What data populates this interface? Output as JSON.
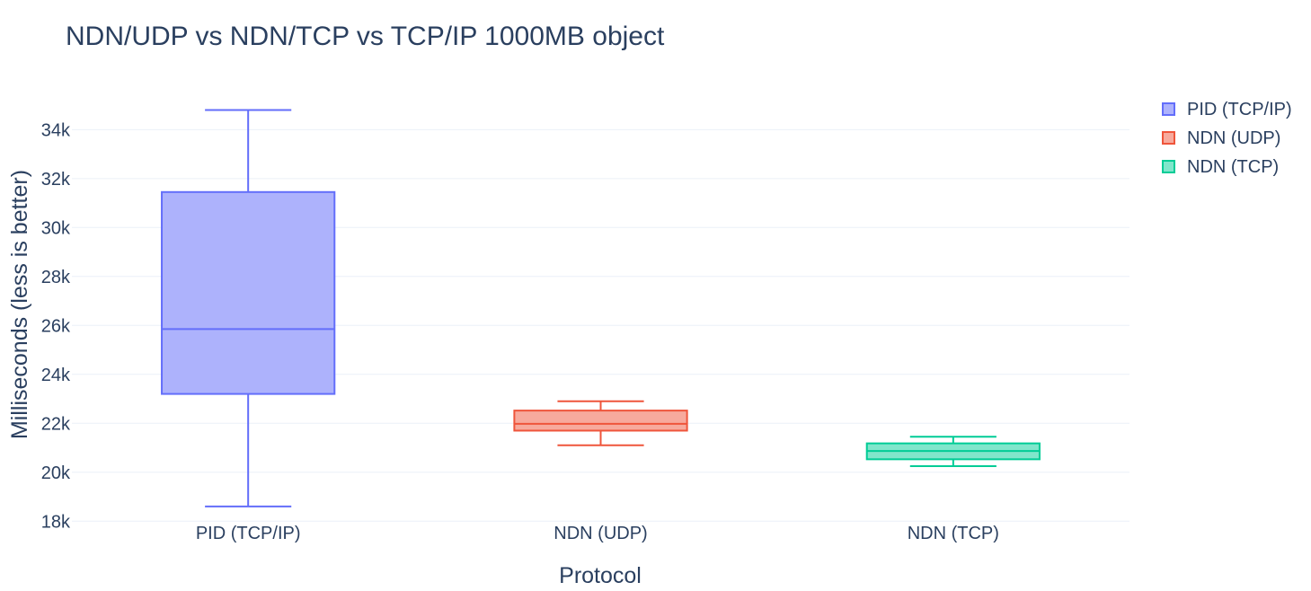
{
  "chart_data": {
    "type": "box",
    "title": "NDN/UDP vs NDN/TCP vs TCP/IP 1000MB object",
    "xlabel": "Protocol",
    "ylabel": "Milliseconds (less is better)",
    "ylim": [
      17900,
      35700
    ],
    "yticks": [
      18000,
      20000,
      22000,
      24000,
      26000,
      28000,
      30000,
      32000,
      34000
    ],
    "ytick_labels": [
      "18k",
      "20k",
      "22k",
      "24k",
      "26k",
      "28k",
      "30k",
      "32k",
      "34k"
    ],
    "grid": true,
    "legend_position": "top-right",
    "categories": [
      "PID (TCP/IP)",
      "NDN (UDP)",
      "NDN (TCP)"
    ],
    "series": [
      {
        "name": "PID (TCP/IP)",
        "color": "#636efa",
        "fill": "#adb2fc",
        "min": 18600,
        "q1": 23200,
        "median": 25850,
        "q3": 31450,
        "max": 34800
      },
      {
        "name": "NDN (UDP)",
        "color": "#ef553b",
        "fill": "#f7aa9d",
        "min": 21100,
        "q1": 21700,
        "median": 21980,
        "q3": 22520,
        "max": 22900
      },
      {
        "name": "NDN (TCP)",
        "color": "#00cc96",
        "fill": "#80e6cb",
        "min": 20250,
        "q1": 20530,
        "median": 20870,
        "q3": 21180,
        "max": 21450
      }
    ]
  }
}
